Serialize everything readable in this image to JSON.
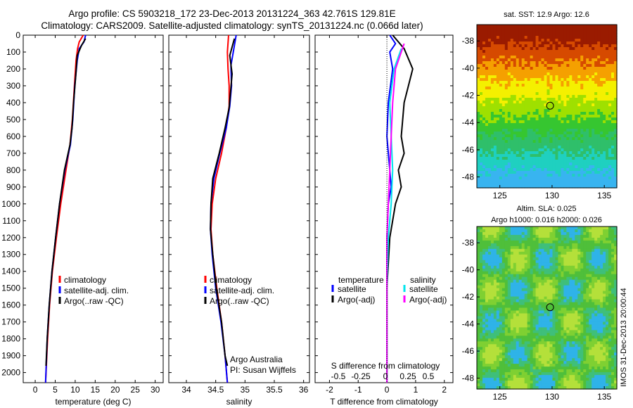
{
  "title_line1": "Argo profile: CS 5903218_172 23-Dec-2013 20131224_363 42.761S 129.81E",
  "title_line2": "Climatology: CARS2009. Satellite-adjusted climatology: synTS_20131224.nc (0.066d later)",
  "side_stamp": "IMOS 31-Dec-2013 20:00:44",
  "depth_ticks": [
    "0",
    "100",
    "200",
    "300",
    "400",
    "500",
    "600",
    "700",
    "800",
    "900",
    "1000",
    "1100",
    "1200",
    "1300",
    "1400",
    "1500",
    "1600",
    "1700",
    "1800",
    "1900",
    "2000"
  ],
  "chart_data": [
    {
      "type": "line",
      "id": "temperature",
      "xlabel": "temperature (deg C)",
      "xlim": [
        -3,
        32
      ],
      "xticks": [
        "0",
        "5",
        "10",
        "15",
        "20",
        "25",
        "30"
      ],
      "ylim": [
        0,
        2060
      ],
      "y_reversed": true,
      "legend": [
        "climatology",
        "satellite-adj. clim.",
        "Argo(..raw -QC)"
      ],
      "series": [
        {
          "name": "climatology",
          "color": "#ff0000",
          "points": [
            [
              12,
              0
            ],
            [
              11,
              40
            ],
            [
              10.6,
              80
            ],
            [
              10.2,
              150
            ],
            [
              9.8,
              300
            ],
            [
              9.3,
              500
            ],
            [
              8.7,
              650
            ],
            [
              7.7,
              800
            ],
            [
              6.4,
              1000
            ],
            [
              5.3,
              1200
            ],
            [
              4.3,
              1400
            ],
            [
              3.6,
              1600
            ],
            [
              3.1,
              1800
            ],
            [
              2.6,
              2060
            ]
          ]
        },
        {
          "name": "satellite-adj. clim.",
          "color": "#0000ff",
          "points": [
            [
              12.6,
              0
            ],
            [
              12.2,
              40
            ],
            [
              11,
              80
            ],
            [
              10.5,
              150
            ],
            [
              9.9,
              300
            ],
            [
              9.4,
              500
            ],
            [
              8.8,
              650
            ],
            [
              7.4,
              800
            ],
            [
              6.1,
              1000
            ],
            [
              5.1,
              1200
            ],
            [
              4.2,
              1400
            ],
            [
              3.5,
              1600
            ],
            [
              3,
              1800
            ],
            [
              2.6,
              2060
            ]
          ]
        },
        {
          "name": "Argo(..raw -QC)",
          "color": "#000000",
          "points": [
            [
              12.6,
              20
            ],
            [
              11.6,
              60
            ],
            [
              10.5,
              120
            ],
            [
              10.1,
              250
            ],
            [
              9.6,
              400
            ],
            [
              9.2,
              550
            ],
            [
              8.7,
              650
            ],
            [
              7.3,
              800
            ],
            [
              6.1,
              1000
            ],
            [
              5.1,
              1200
            ],
            [
              4.2,
              1400
            ],
            [
              3.5,
              1600
            ],
            [
              3,
              1800
            ],
            [
              2.7,
              1960
            ]
          ]
        }
      ]
    },
    {
      "type": "line",
      "id": "salinity",
      "xlabel": "salinity",
      "xlim": [
        33.7,
        36.1
      ],
      "xticks": [
        "34",
        "34.5",
        "35",
        "35.5",
        "36"
      ],
      "ylim": [
        0,
        2060
      ],
      "y_reversed": true,
      "legend": [
        "climatology",
        "satellite-adj. clim.",
        "Argo(..raw -QC)"
      ],
      "annotation": [
        "Argo Australia",
        "PI: Susan Wijffels"
      ],
      "series": [
        {
          "name": "climatology",
          "color": "#ff0000",
          "points": [
            [
              34.72,
              0
            ],
            [
              34.7,
              100
            ],
            [
              34.71,
              200
            ],
            [
              34.73,
              300
            ],
            [
              34.73,
              420
            ],
            [
              34.68,
              550
            ],
            [
              34.6,
              700
            ],
            [
              34.5,
              850
            ],
            [
              34.44,
              1000
            ],
            [
              34.42,
              1150
            ],
            [
              34.45,
              1300
            ],
            [
              34.52,
              1500
            ],
            [
              34.6,
              1700
            ],
            [
              34.66,
              1900
            ],
            [
              34.7,
              2060
            ]
          ]
        },
        {
          "name": "satellite-adj. clim.",
          "color": "#0000ff",
          "points": [
            [
              34.85,
              0
            ],
            [
              34.81,
              80
            ],
            [
              34.76,
              180
            ],
            [
              34.77,
              300
            ],
            [
              34.74,
              420
            ],
            [
              34.68,
              550
            ],
            [
              34.57,
              700
            ],
            [
              34.47,
              850
            ],
            [
              34.42,
              1000
            ],
            [
              34.41,
              1150
            ],
            [
              34.44,
              1300
            ],
            [
              34.5,
              1500
            ],
            [
              34.59,
              1700
            ],
            [
              34.66,
              1900
            ],
            [
              34.7,
              2060
            ]
          ]
        },
        {
          "name": "Argo(..raw -QC)",
          "color": "#000000",
          "points": [
            [
              34.82,
              20
            ],
            [
              34.74,
              120
            ],
            [
              34.78,
              230
            ],
            [
              34.75,
              350
            ],
            [
              34.73,
              430
            ],
            [
              34.66,
              550
            ],
            [
              34.56,
              700
            ],
            [
              34.45,
              850
            ],
            [
              34.42,
              1000
            ],
            [
              34.41,
              1150
            ],
            [
              34.45,
              1300
            ],
            [
              34.51,
              1500
            ],
            [
              34.6,
              1700
            ],
            [
              34.66,
              1900
            ],
            [
              34.7,
              1960
            ]
          ]
        }
      ]
    },
    {
      "type": "line",
      "id": "difference",
      "xlabel": "T difference from climatology",
      "xlabel2": "S difference from climatology",
      "xlim": [
        -2.5,
        2.3
      ],
      "xticks": [
        "-2",
        "-1",
        "0",
        "1",
        "2"
      ],
      "xticks_top": [
        "-0.5",
        "-0.25",
        "0",
        "0.25",
        "0.5"
      ],
      "ylim": [
        0,
        2060
      ],
      "y_reversed": true,
      "legend_left_title": "temperature",
      "legend_left": [
        "satellite",
        "Argo(-adj)"
      ],
      "legend_right_title": "salinity",
      "legend_right": [
        "satellite",
        "Argo(-adj)"
      ],
      "series": [
        {
          "name": "temperature satellite",
          "color": "#0000ff",
          "points": [
            [
              0.1,
              0
            ],
            [
              0.3,
              50
            ],
            [
              0.1,
              100
            ],
            [
              0.2,
              200
            ],
            [
              0.05,
              400
            ],
            [
              0,
              600
            ],
            [
              0.1,
              800
            ],
            [
              0.15,
              900
            ],
            [
              0.05,
              1000
            ],
            [
              0,
              1200
            ],
            [
              0,
              1500
            ],
            [
              0,
              2060
            ]
          ]
        },
        {
          "name": "temperature Argo(-adj)",
          "color": "#000000",
          "points": [
            [
              0.2,
              0
            ],
            [
              0.6,
              80
            ],
            [
              0.9,
              200
            ],
            [
              0.6,
              400
            ],
            [
              0.5,
              600
            ],
            [
              0.6,
              700
            ],
            [
              0.4,
              800
            ],
            [
              0.5,
              900
            ],
            [
              0.3,
              1000
            ],
            [
              0.1,
              1200
            ],
            [
              0,
              1500
            ],
            [
              0,
              2060
            ]
          ]
        },
        {
          "name": "salinity satellite",
          "color": "#00e5ee",
          "points": [
            [
              0.5,
              80
            ],
            [
              0.25,
              200
            ],
            [
              0.1,
              400
            ],
            [
              0.15,
              600
            ],
            [
              0.2,
              800
            ],
            [
              0.15,
              1000
            ],
            [
              0.05,
              1200
            ],
            [
              0,
              1500
            ],
            [
              0,
              2060
            ]
          ]
        },
        {
          "name": "salinity Argo(-adj)",
          "color": "#ff00ff",
          "points": [
            [
              0.6,
              50
            ],
            [
              0.5,
              100
            ],
            [
              0.3,
              200
            ],
            [
              0.2,
              400
            ],
            [
              0.15,
              600
            ],
            [
              0.1,
              800
            ],
            [
              0.05,
              1000
            ],
            [
              0,
              1200
            ],
            [
              0,
              1500
            ],
            [
              0,
              2060
            ]
          ]
        }
      ]
    },
    {
      "type": "heatmap",
      "id": "sst_map",
      "title": "sat. SST: 12.9 Argo: 12.6",
      "xlim": [
        122.8,
        136.2
      ],
      "ylim": [
        -48.8,
        -36.8
      ],
      "xticks": [
        "125",
        "130",
        "135"
      ],
      "yticks": [
        "-38",
        "-40",
        "-42",
        "-44",
        "-46",
        "-48"
      ],
      "marker": {
        "lon": 129.81,
        "lat": -42.761
      },
      "colormap": [
        "#9a1b00",
        "#d64a00",
        "#f5a000",
        "#f4f000",
        "#9fe000",
        "#36c630",
        "#2fbf6a",
        "#1fd0c0",
        "#38b4f0"
      ]
    },
    {
      "type": "heatmap",
      "id": "sla_map",
      "title_line1": "Altim. SLA: 0.025",
      "title_line2": "Argo h1000: 0.016 h2000: 0.026",
      "xlim": [
        122.8,
        136.2
      ],
      "ylim": [
        -48.8,
        -36.8
      ],
      "xticks": [
        "125",
        "130",
        "135"
      ],
      "yticks": [
        "-38",
        "-40",
        "-42",
        "-44",
        "-46",
        "-48"
      ],
      "marker": {
        "lon": 129.81,
        "lat": -42.761
      },
      "colormap": [
        "#2fb3e8",
        "#3fbf7a",
        "#4fbf3a",
        "#7fd032",
        "#b4e03a"
      ]
    }
  ]
}
